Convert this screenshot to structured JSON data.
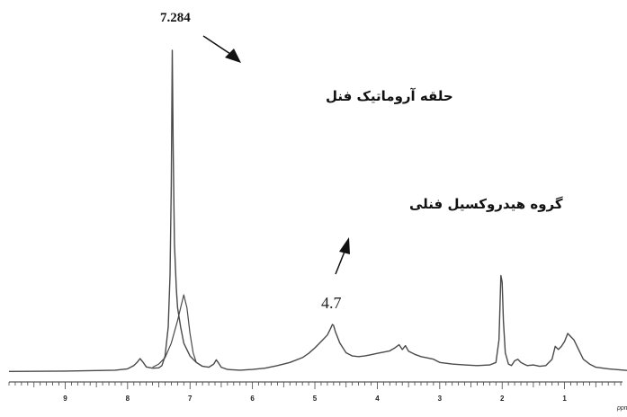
{
  "chart_data": {
    "type": "line",
    "title": "",
    "xlabel": "ppm",
    "ylabel": "",
    "xlim": [
      9.9,
      0.0
    ],
    "x_reversed": true,
    "x_ticks": [
      9,
      8,
      7,
      6,
      5,
      4,
      3,
      2,
      1
    ],
    "grid": false,
    "legend": "none",
    "line_color": "#4a4a4a",
    "series": [
      {
        "values_desc": "main spectrum trace",
        "x": [
          9.9,
          9.0,
          8.2,
          8.0,
          7.9,
          7.85,
          7.8,
          7.75,
          7.7,
          7.6,
          7.5,
          7.45,
          7.4,
          7.35,
          7.32,
          7.3,
          7.284,
          7.27,
          7.25,
          7.22,
          7.2,
          7.15,
          7.1,
          7.0,
          6.9,
          6.8,
          6.7,
          6.62,
          6.58,
          6.55,
          6.5,
          6.4,
          6.2,
          6.0,
          5.8,
          5.6,
          5.4,
          5.2,
          5.1,
          5.0,
          4.9,
          4.8,
          4.75,
          4.72,
          4.7,
          4.67,
          4.6,
          4.5,
          4.4,
          4.3,
          4.2,
          4.1,
          4.0,
          3.9,
          3.8,
          3.72,
          3.65,
          3.6,
          3.55,
          3.5,
          3.4,
          3.3,
          3.2,
          3.1,
          3.0,
          2.8,
          2.6,
          2.4,
          2.2,
          2.1,
          2.05,
          2.02,
          2.0,
          1.98,
          1.95,
          1.9,
          1.85,
          1.8,
          1.75,
          1.7,
          1.65,
          1.6,
          1.5,
          1.4,
          1.3,
          1.2,
          1.15,
          1.1,
          1.05,
          1.0,
          0.95,
          0.9,
          0.85,
          0.8,
          0.7,
          0.6,
          0.5,
          0.3,
          0.0
        ],
        "y": [
          0.2,
          0.3,
          0.6,
          1.0,
          2.0,
          3.0,
          4.2,
          3.0,
          1.6,
          1.2,
          1.3,
          2.0,
          5.0,
          14.0,
          30.0,
          58.0,
          100.0,
          70.0,
          40.0,
          26.0,
          20.0,
          14.0,
          9.0,
          5.0,
          3.0,
          1.8,
          1.5,
          2.5,
          3.8,
          3.0,
          1.5,
          0.8,
          0.6,
          0.8,
          1.2,
          2.0,
          3.0,
          4.5,
          5.8,
          7.5,
          9.5,
          11.5,
          13.5,
          14.8,
          14.5,
          12.5,
          9.0,
          6.0,
          5.0,
          4.8,
          5.0,
          5.4,
          5.8,
          6.2,
          6.6,
          7.5,
          8.5,
          7.0,
          8.2,
          6.5,
          5.5,
          4.8,
          4.4,
          4.0,
          3.0,
          2.5,
          2.2,
          2.0,
          2.2,
          3.0,
          10.0,
          30.0,
          28.0,
          16.0,
          6.0,
          2.5,
          2.0,
          3.5,
          4.0,
          3.0,
          2.5,
          2.0,
          2.2,
          1.8,
          2.0,
          4.0,
          8.0,
          7.0,
          8.0,
          9.5,
          12.0,
          11.0,
          10.0,
          8.0,
          4.0,
          2.5,
          1.5,
          1.0,
          0.5
        ]
      },
      {
        "values_desc": "second overlapping trace",
        "x": [
          7.6,
          7.5,
          7.4,
          7.3,
          7.2,
          7.15,
          7.1,
          7.05,
          7.0,
          6.95,
          6.9,
          6.8
        ],
        "y": [
          1.5,
          2.5,
          4.5,
          9.0,
          16.0,
          20.0,
          24.0,
          20.0,
          12.0,
          6.0,
          3.0,
          1.8
        ]
      }
    ],
    "annotations": [
      {
        "text": "7.284",
        "x": 7.284
      },
      {
        "text": "حلقه آروماتیک فنل"
      },
      {
        "text": "گروه هیدروکسیل فنلی"
      },
      {
        "text": "4.7",
        "x": 4.7
      }
    ]
  }
}
